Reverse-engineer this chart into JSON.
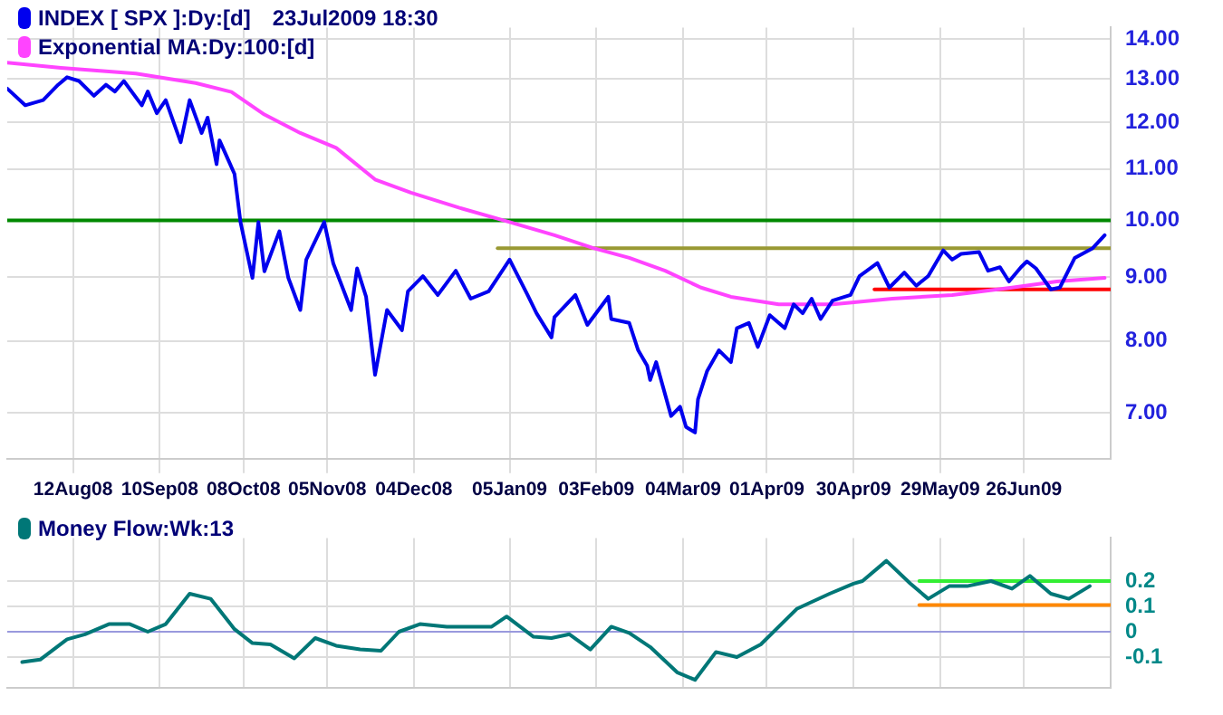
{
  "chart_data": [
    {
      "type": "line",
      "log": "y",
      "grid": true,
      "legend": "top left",
      "marker": "none",
      "annotations": [
        "23Jul2009 18:30"
      ],
      "xlim": [
        "2008-07-21",
        "2009-07-25"
      ],
      "xticks": [
        {
          "value": "2008-08-12",
          "label": "12Aug08"
        },
        {
          "value": "2008-09-10",
          "label": "10Sep08"
        },
        {
          "value": "2008-10-08",
          "label": "08Oct08"
        },
        {
          "value": "2008-11-05",
          "label": "05Nov08"
        },
        {
          "value": "2008-12-04",
          "label": "04Dec08"
        },
        {
          "value": "2009-01-05",
          "label": "05Jan09"
        },
        {
          "value": "2009-02-03",
          "label": "03Feb09"
        },
        {
          "value": "2009-03-04",
          "label": "04Mar09"
        },
        {
          "value": "2009-04-01",
          "label": "01Apr09"
        },
        {
          "value": "2009-04-30",
          "label": "30Apr09"
        },
        {
          "value": "2009-05-29",
          "label": "29May09"
        },
        {
          "value": "2009-06-26",
          "label": "26Jun09"
        }
      ],
      "ylim": [
        6.43,
        14.3
      ],
      "yticks": [
        {
          "value": 7,
          "label": "7.00"
        },
        {
          "value": 8,
          "label": "8.00"
        },
        {
          "value": 9,
          "label": "9.00"
        },
        {
          "value": 10,
          "label": "10.00"
        },
        {
          "value": 11,
          "label": "11.00"
        },
        {
          "value": 12,
          "label": "12.00"
        },
        {
          "value": 13,
          "label": "13.00"
        },
        {
          "value": 14,
          "label": "14.00"
        }
      ],
      "ref_lines": [
        {
          "axis": "y",
          "value": 10,
          "color": "#008800"
        }
      ],
      "series": [
        {
          "name": "INDEX [ SPX ]:Dy:[d]",
          "color": "#0000ee",
          "x": [
            "2008-07-21",
            "2008-07-27",
            "2008-08-02",
            "2008-08-07",
            "2008-08-10",
            "2008-08-14",
            "2008-08-19",
            "2008-08-23",
            "2008-08-26",
            "2008-08-29",
            "2008-09-04",
            "2008-09-06",
            "2008-09-09",
            "2008-09-12",
            "2008-09-17",
            "2008-09-20",
            "2008-09-24",
            "2008-09-26",
            "2008-09-29",
            "2008-09-30",
            "2008-10-05",
            "2008-10-07",
            "2008-10-11",
            "2008-10-13",
            "2008-10-15",
            "2008-10-20",
            "2008-10-23",
            "2008-10-27",
            "2008-10-29",
            "2008-11-04",
            "2008-11-07",
            "2008-11-13",
            "2008-11-15",
            "2008-11-18",
            "2008-11-21",
            "2008-11-25",
            "2008-11-30",
            "2008-12-02",
            "2008-12-07",
            "2008-12-12",
            "2008-12-18",
            "2008-12-23",
            "2008-12-29",
            "2009-01-05",
            "2009-01-11",
            "2009-01-14",
            "2009-01-19",
            "2009-01-20",
            "2009-01-27",
            "2009-01-31",
            "2009-02-07",
            "2009-02-08",
            "2009-02-14",
            "2009-02-17",
            "2009-02-20",
            "2009-02-21",
            "2009-02-23",
            "2009-02-28",
            "2009-03-03",
            "2009-03-05",
            "2009-03-08",
            "2009-03-09",
            "2009-03-12",
            "2009-03-16",
            "2009-03-20",
            "2009-03-22",
            "2009-03-26",
            "2009-03-29",
            "2009-04-02",
            "2009-04-07",
            "2009-04-10",
            "2009-04-13",
            "2009-04-16",
            "2009-04-19",
            "2009-04-23",
            "2009-04-29",
            "2009-05-02",
            "2009-05-08",
            "2009-05-12",
            "2009-05-17",
            "2009-05-21",
            "2009-05-25",
            "2009-05-30",
            "2009-06-02",
            "2009-06-05",
            "2009-06-11",
            "2009-06-14",
            "2009-06-18",
            "2009-06-21",
            "2009-06-25",
            "2009-06-27",
            "2009-06-30",
            "2009-07-05",
            "2009-07-08",
            "2009-07-13",
            "2009-07-19",
            "2009-07-23"
          ],
          "values": [
            12.77,
            12.38,
            12.5,
            12.86,
            13.04,
            12.95,
            12.6,
            12.86,
            12.7,
            12.95,
            12.38,
            12.7,
            12.2,
            12.5,
            11.56,
            12.5,
            11.76,
            12.1,
            11.1,
            11.6,
            10.9,
            9.97,
            8.99,
            9.97,
            9.1,
            9.8,
            8.99,
            8.47,
            9.3,
            9.97,
            9.24,
            8.47,
            9.15,
            8.68,
            7.51,
            8.47,
            8.16,
            8.77,
            9.02,
            8.71,
            9.11,
            8.65,
            8.77,
            9.3,
            8.71,
            8.42,
            8.05,
            8.36,
            8.71,
            8.24,
            8.68,
            8.33,
            8.27,
            7.86,
            7.64,
            7.44,
            7.69,
            6.96,
            7.08,
            6.82,
            6.75,
            7.18,
            7.56,
            7.86,
            7.69,
            8.19,
            8.27,
            7.91,
            8.39,
            8.19,
            8.56,
            8.42,
            8.65,
            8.33,
            8.62,
            8.71,
            9.02,
            9.24,
            8.83,
            9.08,
            8.86,
            9.02,
            9.46,
            9.3,
            9.4,
            9.43,
            9.11,
            9.17,
            8.93,
            9.17,
            9.27,
            9.15,
            8.8,
            8.83,
            9.33,
            9.5,
            9.73
          ]
        },
        {
          "name": "Exponential MA:Dy:100:[d]",
          "color": "#ff44ff",
          "x": [
            "2008-07-21",
            "2008-08-08",
            "2008-09-02",
            "2008-09-22",
            "2008-10-04",
            "2008-10-15",
            "2008-10-27",
            "2008-11-08",
            "2008-11-21",
            "2008-12-03",
            "2008-12-19",
            "2009-01-05",
            "2009-01-20",
            "2009-02-02",
            "2009-02-14",
            "2009-02-26",
            "2009-03-10",
            "2009-03-20",
            "2009-04-05",
            "2009-04-23",
            "2009-05-13",
            "2009-06-02",
            "2009-06-22",
            "2009-07-07",
            "2009-07-23"
          ],
          "values": [
            13.4,
            13.27,
            13.13,
            12.9,
            12.69,
            12.17,
            11.76,
            11.44,
            10.79,
            10.53,
            10.24,
            9.97,
            9.73,
            9.5,
            9.33,
            9.11,
            8.83,
            8.68,
            8.56,
            8.56,
            8.65,
            8.71,
            8.83,
            8.93,
            8.99
          ]
        },
        {
          "color": "#999933",
          "x": [
            "2009-01-01",
            "2009-07-25"
          ],
          "values": [
            9.5,
            9.5
          ]
        },
        {
          "color": "#ff0000",
          "x": [
            "2009-05-07",
            "2009-07-25"
          ],
          "values": [
            8.8,
            8.8
          ]
        }
      ]
    },
    {
      "type": "line",
      "grid": true,
      "legend": "top left",
      "marker": "none",
      "tick_labels": "y",
      "xlim": [
        "2008-07-21",
        "2009-07-25"
      ],
      "xticks": [
        {
          "value": "2008-08-12",
          "label": null
        },
        {
          "value": "2008-09-10",
          "label": null
        },
        {
          "value": "2008-10-08",
          "label": null
        },
        {
          "value": "2008-11-05",
          "label": null
        },
        {
          "value": "2008-12-04",
          "label": null
        },
        {
          "value": "2009-01-05",
          "label": null
        },
        {
          "value": "2009-02-03",
          "label": null
        },
        {
          "value": "2009-03-04",
          "label": null
        },
        {
          "value": "2009-04-01",
          "label": null
        },
        {
          "value": "2009-04-30",
          "label": null
        },
        {
          "value": "2009-05-29",
          "label": null
        },
        {
          "value": "2009-06-26",
          "label": null
        }
      ],
      "ylim": [
        -0.22,
        0.37
      ],
      "yticks": [
        -0.1,
        0,
        0.1,
        0.2
      ],
      "ref_lines": [
        {
          "axis": "y",
          "value": 0,
          "color": "#9999dd"
        }
      ],
      "series": [
        {
          "name": "Money Flow:Wk:13",
          "color": "#007777",
          "x": [
            "2008-07-26",
            "2008-08-01",
            "2008-08-10",
            "2008-08-16",
            "2008-08-24",
            "2008-08-31",
            "2008-09-06",
            "2008-09-12",
            "2008-09-20",
            "2008-09-27",
            "2008-10-05",
            "2008-10-11",
            "2008-10-17",
            "2008-10-25",
            "2008-11-01",
            "2008-11-08",
            "2008-11-16",
            "2008-11-23",
            "2008-11-29",
            "2008-12-06",
            "2008-12-15",
            "2008-12-30",
            "2009-01-04",
            "2009-01-13",
            "2009-01-19",
            "2009-01-25",
            "2009-02-01",
            "2009-02-08",
            "2009-02-14",
            "2009-02-21",
            "2009-03-02",
            "2009-03-08",
            "2009-03-15",
            "2009-03-22",
            "2009-03-30",
            "2009-04-11",
            "2009-04-22",
            "2009-04-30",
            "2009-05-03",
            "2009-05-11",
            "2009-05-19",
            "2009-05-25",
            "2009-06-01",
            "2009-06-07",
            "2009-06-15",
            "2009-06-22",
            "2009-06-28",
            "2009-07-05",
            "2009-07-11",
            "2009-07-18"
          ],
          "values": [
            -0.12,
            -0.11,
            -0.03,
            -0.01,
            0.03,
            0.03,
            0,
            0.03,
            0.15,
            0.13,
            0.01,
            -0.045,
            -0.05,
            -0.105,
            -0.025,
            -0.055,
            -0.07,
            -0.075,
            0,
            0.03,
            0.02,
            0.02,
            0.06,
            -0.02,
            -0.025,
            -0.01,
            -0.07,
            0.02,
            -0.005,
            -0.06,
            -0.16,
            -0.19,
            -0.08,
            -0.1,
            -0.05,
            0.09,
            0.15,
            0.19,
            0.2,
            0.28,
            0.19,
            0.13,
            0.18,
            0.18,
            0.2,
            0.17,
            0.22,
            0.15,
            0.13,
            0.18
          ]
        },
        {
          "color": "#33ee33",
          "x": [
            "2009-05-22",
            "2009-07-25"
          ],
          "values": [
            0.2,
            0.2
          ]
        },
        {
          "color": "#ff8800",
          "x": [
            "2009-05-22",
            "2009-07-25"
          ],
          "values": [
            0.105,
            0.105
          ]
        }
      ]
    }
  ]
}
